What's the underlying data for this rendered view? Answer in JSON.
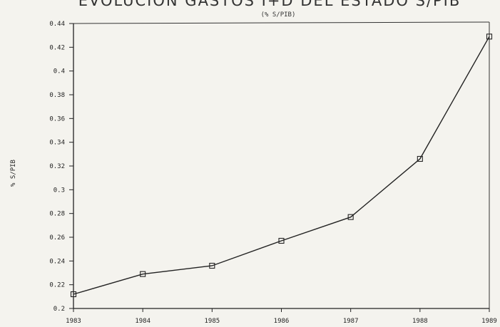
{
  "chart_data": {
    "type": "line",
    "title": "EVOLUCION GASTOS I+D DEL ESTADO  S/PIB",
    "subtitle": "(% S/PIB)",
    "xlabel": "",
    "ylabel": "% S/PIB",
    "x": [
      "1983",
      "1984",
      "1985",
      "1986",
      "1987",
      "1988",
      "1989"
    ],
    "series": [
      {
        "values": [
          0.212,
          0.229,
          0.236,
          0.257,
          0.277,
          0.326,
          0.429
        ]
      }
    ],
    "yticks": [
      "0.2",
      "0.22",
      "0.24",
      "0.26",
      "0.28",
      "0.3",
      "0.32",
      "0.34",
      "0.36",
      "0.38",
      "0.4",
      "0.42",
      "0.44"
    ],
    "ylim": [
      0.2,
      0.44
    ],
    "grid": false,
    "marker": "square"
  }
}
